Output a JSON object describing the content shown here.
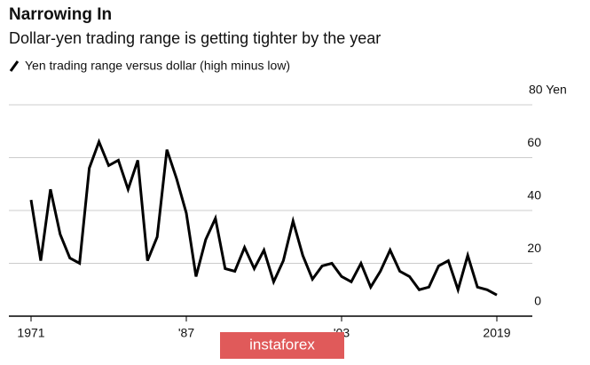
{
  "chart_data": {
    "type": "line",
    "title": "Narrowing In",
    "subtitle": "Dollar-yen trading range is getting tighter by the year",
    "x": [
      1971,
      1972,
      1973,
      1974,
      1975,
      1976,
      1977,
      1978,
      1979,
      1980,
      1981,
      1982,
      1983,
      1984,
      1985,
      1986,
      1987,
      1988,
      1989,
      1990,
      1991,
      1992,
      1993,
      1994,
      1995,
      1996,
      1997,
      1998,
      1999,
      2000,
      2001,
      2002,
      2003,
      2004,
      2005,
      2006,
      2007,
      2008,
      2009,
      2010,
      2011,
      2012,
      2013,
      2014,
      2015,
      2016,
      2017,
      2018,
      2019
    ],
    "series": [
      {
        "name": "Yen trading range versus dollar (high minus low)",
        "color": "#000000",
        "values": [
          44,
          21,
          48,
          31,
          22,
          20,
          56,
          66,
          57,
          59,
          48,
          59,
          21,
          30,
          63,
          52,
          39,
          15,
          29,
          37,
          18,
          17,
          26,
          18,
          25,
          13,
          21,
          36,
          23,
          14,
          19,
          20,
          15,
          13,
          20,
          11,
          17,
          25,
          17,
          15,
          10,
          11,
          19,
          21,
          10,
          23,
          11,
          10,
          8
        ]
      }
    ],
    "xlim": [
      1971,
      2019
    ],
    "xticks": [
      1971,
      {
        "value": 1987,
        "label": "'87"
      },
      {
        "value": 2003,
        "label": "'03"
      },
      2019
    ],
    "ylim": [
      0,
      80
    ],
    "yticks": [
      0,
      20,
      40,
      60,
      {
        "value": 80,
        "label": "80 Yen"
      }
    ],
    "grid": true
  },
  "watermark": "instaforex"
}
